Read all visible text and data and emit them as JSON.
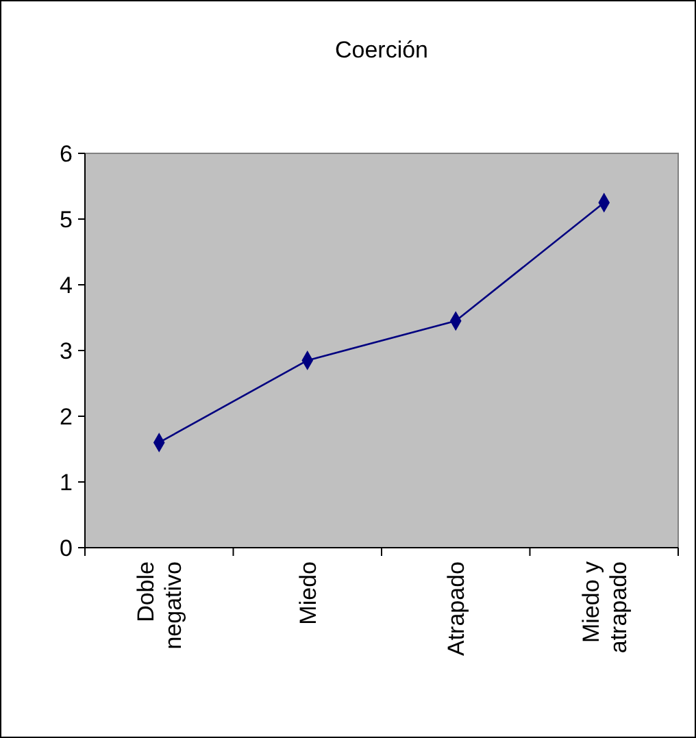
{
  "chart_data": {
    "type": "line",
    "title": "Coerción",
    "categories": [
      "Doble negativo",
      "Miedo",
      "Atrapado",
      "Miedo y atrapado"
    ],
    "series": [
      {
        "color": "#000080",
        "values": [
          1.6,
          2.85,
          3.45,
          5.25
        ]
      }
    ],
    "ylim": [
      0,
      6
    ],
    "yticks": [
      0,
      1,
      2,
      3,
      4,
      5,
      6
    ],
    "marker": "diamond",
    "grid": false
  }
}
